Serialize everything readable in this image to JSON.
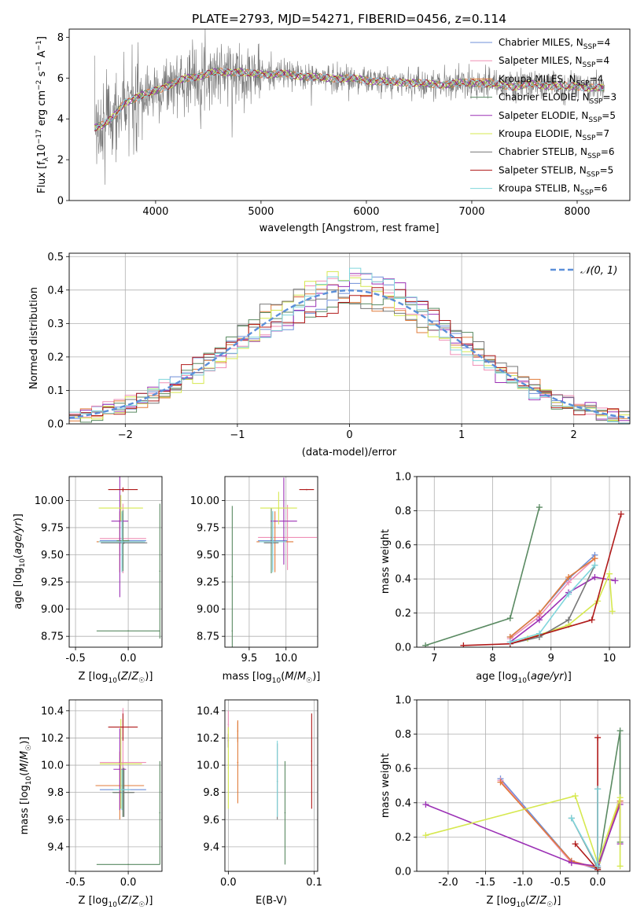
{
  "figure": {
    "title": "PLATE=2793, MJD=54271, FIBERID=0456, z=0.114"
  },
  "colors": {
    "Chabrier MILES": "#6f8fd8",
    "Salpeter MILES": "#ef8fb6",
    "Kroupa MILES": "#e07b3a",
    "Chabrier ELODIE": "#5a8a62",
    "Salpeter ELODIE": "#9b30b5",
    "Kroupa ELODIE": "#d6e84f",
    "Chabrier STELIB": "#777777",
    "Salpeter STELIB": "#b01a1a",
    "Kroupa STELIB": "#7fd6dc"
  },
  "chart_data": [
    {
      "type": "line",
      "title": "PLATE=2793, MJD=54271, FIBERID=0456, z=0.114",
      "xlabel": "wavelength [Angstrom, rest frame]",
      "ylabel": "Flux [f_λ10^-17 erg cm^-2 s^-1 A^-1]",
      "xlim": [
        3180,
        8500
      ],
      "ylim": [
        0,
        8.4
      ],
      "xticks": [
        4000,
        5000,
        6000,
        7000,
        8000
      ],
      "yticks": [
        0,
        2,
        4,
        6,
        8
      ],
      "grid": false,
      "legend": "right",
      "spectrum": {
        "name": "data",
        "x": [
          3420,
          3500,
          3560,
          3620,
          3700,
          3800,
          3900,
          4000,
          4100,
          4200,
          4300,
          4400,
          4500,
          4600,
          4700,
          4800,
          4900,
          5000,
          5200,
          5400,
          5600,
          5800,
          6000,
          6200,
          6400,
          6600,
          6800,
          7000,
          7200,
          7400,
          7600,
          7800,
          8000,
          8200,
          8260
        ],
        "y": [
          3.6,
          3.7,
          3.9,
          4.2,
          4.8,
          5.0,
          5.2,
          5.4,
          5.6,
          5.8,
          6.0,
          6.1,
          6.2,
          6.3,
          6.3,
          6.3,
          6.2,
          6.2,
          6.2,
          6.1,
          6.0,
          6.0,
          5.9,
          5.8,
          5.8,
          5.7,
          5.7,
          5.8,
          5.7,
          5.6,
          5.7,
          5.6,
          5.6,
          5.5,
          5.5
        ]
      },
      "series": [
        {
          "name": "Chabrier MILES",
          "label": "Chabrier MILES, N",
          "sub": "SSP",
          "suffix": "=4"
        },
        {
          "name": "Salpeter MILES",
          "label": "Salpeter MILES, N",
          "sub": "SSP",
          "suffix": "=4"
        },
        {
          "name": "Kroupa MILES",
          "label": "Kroupa MILES, N",
          "sub": "SSP",
          "suffix": "=4"
        },
        {
          "name": "Chabrier ELODIE",
          "label": "Chabrier ELODIE, N",
          "sub": "SSP",
          "suffix": "=3"
        },
        {
          "name": "Salpeter ELODIE",
          "label": "Salpeter ELODIE, N",
          "sub": "SSP",
          "suffix": "=5"
        },
        {
          "name": "Kroupa ELODIE",
          "label": "Kroupa ELODIE, N",
          "sub": "SSP",
          "suffix": "=7"
        },
        {
          "name": "Chabrier STELIB",
          "label": "Chabrier STELIB, N",
          "sub": "SSP",
          "suffix": "=6"
        },
        {
          "name": "Salpeter STELIB",
          "label": "Salpeter STELIB, N",
          "sub": "SSP",
          "suffix": "=5"
        },
        {
          "name": "Kroupa STELIB",
          "label": "Kroupa STELIB, N",
          "sub": "SSP",
          "suffix": "=6"
        }
      ]
    },
    {
      "type": "line",
      "xlabel": "(data-model)/error",
      "ylabel": "Normed distribution",
      "xlim": [
        -2.5,
        2.5
      ],
      "ylim": [
        0,
        0.51
      ],
      "xticks": [
        -2,
        -1,
        0,
        1,
        2
      ],
      "yticks": [
        0.0,
        0.1,
        0.2,
        0.3,
        0.4,
        0.5
      ],
      "grid": true,
      "legend": "top-right",
      "legend_entries": [
        "𝒩(0, 1)"
      ],
      "histogram_bins": [
        -2.5,
        2.5,
        50
      ],
      "normal_curve": {
        "mean": 0,
        "sigma": 1
      }
    },
    {
      "type": "scatter",
      "xlabel": "Z [log10(Z/Z☉)]",
      "ylabel": "age [log10(age/yr)]",
      "xlim": [
        -0.56,
        0.32
      ],
      "ylim": [
        8.65,
        10.22
      ],
      "xticks": [
        -0.5,
        0.0
      ],
      "yticks": [
        8.75,
        9.0,
        9.25,
        9.5,
        9.75,
        10.0
      ],
      "grid": true,
      "points": [
        {
          "series": "Chabrier MILES",
          "x": -0.05,
          "y": 9.63,
          "xerr": 0.22,
          "yerr": 0.25
        },
        {
          "series": "Salpeter MILES",
          "x": -0.05,
          "y": 9.65,
          "xerr": 0.22,
          "yerr": 0.32
        },
        {
          "series": "Kroupa MILES",
          "x": -0.08,
          "y": 9.62,
          "xerr": 0.22,
          "yerr": 0.28
        },
        {
          "series": "Chabrier ELODIE",
          "x": -0.05,
          "y": 9.63,
          "xerr": 0.06,
          "yerr": 0.28
        },
        {
          "series": "Salpeter ELODIE",
          "x": -0.08,
          "y": 9.81,
          "xerr": 0.08,
          "yerr": 0.7
        },
        {
          "series": "Kroupa ELODIE",
          "x": -0.07,
          "y": 9.93,
          "xerr": 0.21,
          "yerr": 0.12
        },
        {
          "series": "Chabrier STELIB",
          "x": -0.04,
          "y": 9.61,
          "xerr": 0.22,
          "yerr": 0.01
        },
        {
          "series": "Salpeter STELIB",
          "x": -0.05,
          "y": 10.1,
          "xerr": 0.14,
          "yerr": 0.02
        },
        {
          "series": "Kroupa STELIB",
          "x": -0.06,
          "y": 9.62,
          "xerr": 0.22,
          "yerr": 0.28
        },
        {
          "series": "Chabrier ELODIE",
          "x": 0.0,
          "y": 8.8,
          "xerr": 0.3,
          "yerr": 0.0
        },
        {
          "series": "Chabrier ELODIE",
          "x": 0.3,
          "y": 9.35,
          "xerr": 0.0,
          "yerr": 0.62
        }
      ]
    },
    {
      "type": "scatter",
      "xlabel": "mass [log10(M/M☉)]",
      "ylabel": "",
      "xlim": [
        9.17,
        10.43
      ],
      "ylim": [
        8.65,
        10.22
      ],
      "xticks": [
        9.5,
        10.0
      ],
      "yticks": [
        8.75,
        9.0,
        9.25,
        9.5,
        9.75,
        10.0
      ],
      "grid": true,
      "points": [
        {
          "series": "Chabrier MILES",
          "x": 9.82,
          "y": 9.63,
          "xerr": 0.2,
          "yerr": 0.27
        },
        {
          "series": "Salpeter MILES",
          "x": 10.02,
          "y": 9.66,
          "xerr": 0.4,
          "yerr": 0.3
        },
        {
          "series": "Kroupa MILES",
          "x": 9.85,
          "y": 9.62,
          "xerr": 0.25,
          "yerr": 0.28
        },
        {
          "series": "Chabrier ELODIE",
          "x": 9.8,
          "y": 9.63,
          "xerr": 0.0,
          "yerr": 0.3
        },
        {
          "series": "Salpeter ELODIE",
          "x": 9.97,
          "y": 9.81,
          "xerr": 0.18,
          "yerr": 0.4
        },
        {
          "series": "Kroupa ELODIE",
          "x": 9.9,
          "y": 9.93,
          "xerr": 0.25,
          "yerr": 0.15
        },
        {
          "series": "Chabrier STELIB",
          "x": 9.8,
          "y": 9.61,
          "xerr": 0.1,
          "yerr": 0.03
        },
        {
          "series": "Salpeter STELIB",
          "x": 10.28,
          "y": 10.1,
          "xerr": 0.1,
          "yerr": 0.0
        },
        {
          "series": "Kroupa STELIB",
          "x": 9.82,
          "y": 9.62,
          "xerr": 0.18,
          "yerr": 0.28
        },
        {
          "series": "Chabrier ELODIE",
          "x": 9.27,
          "y": 8.8,
          "xerr": 0.0,
          "yerr": 0.0
        },
        {
          "series": "Chabrier ELODIE",
          "x": 9.27,
          "y": 9.3,
          "xerr": 0.0,
          "yerr": 0.65
        }
      ]
    },
    {
      "type": "line",
      "xlabel": "age [log10(age/yr)]",
      "ylabel": "mass weight",
      "xlim": [
        6.7,
        10.35
      ],
      "ylim": [
        0,
        1.0
      ],
      "xticks": [
        7,
        8,
        9,
        10
      ],
      "yticks": [
        0.0,
        0.2,
        0.4,
        0.6,
        0.8,
        1.0
      ],
      "grid": true,
      "series": [
        {
          "name": "Chabrier MILES",
          "x": [
            8.3,
            8.8,
            9.3,
            9.75
          ],
          "y": [
            0.06,
            0.2,
            0.4,
            0.54
          ]
        },
        {
          "name": "Salpeter MILES",
          "x": [
            8.3,
            8.8,
            9.3,
            9.75
          ],
          "y": [
            0.05,
            0.18,
            0.38,
            0.52
          ]
        },
        {
          "name": "Kroupa MILES",
          "x": [
            8.3,
            8.8,
            9.3,
            9.75
          ],
          "y": [
            0.06,
            0.2,
            0.41,
            0.52
          ]
        },
        {
          "name": "Chabrier ELODIE",
          "x": [
            6.85,
            8.3,
            8.8
          ],
          "y": [
            0.01,
            0.17,
            0.82
          ]
        },
        {
          "name": "Salpeter ELODIE",
          "x": [
            8.3,
            8.8,
            9.3,
            9.75,
            10.1
          ],
          "y": [
            0.03,
            0.16,
            0.32,
            0.41,
            0.39
          ]
        },
        {
          "name": "Kroupa ELODIE",
          "x": [
            8.6,
            9.3,
            9.8,
            10.0,
            10.05
          ],
          "y": [
            0.05,
            0.13,
            0.27,
            0.43,
            0.21
          ]
        },
        {
          "name": "Chabrier STELIB",
          "x": [
            8.3,
            8.8,
            9.3,
            9.75
          ],
          "y": [
            0.02,
            0.06,
            0.16,
            0.48
          ]
        },
        {
          "name": "Salpeter STELIB",
          "x": [
            7.5,
            8.3,
            9.7,
            10.2
          ],
          "y": [
            0.01,
            0.02,
            0.16,
            0.78
          ]
        },
        {
          "name": "Kroupa STELIB",
          "x": [
            8.3,
            8.8,
            9.3,
            9.75
          ],
          "y": [
            0.03,
            0.08,
            0.31,
            0.48
          ]
        }
      ]
    },
    {
      "type": "scatter",
      "xlabel": "Z [log10(Z/Z☉)]",
      "ylabel": "mass [log10(M/M☉)]",
      "xlim": [
        -0.56,
        0.32
      ],
      "ylim": [
        9.22,
        10.48
      ],
      "xticks": [
        -0.5,
        0.0
      ],
      "yticks": [
        9.4,
        9.6,
        9.8,
        10.0,
        10.2,
        10.4
      ],
      "grid": true,
      "points": [
        {
          "series": "Chabrier MILES",
          "x": -0.05,
          "y": 9.82,
          "xerr": 0.22,
          "yerr": 0.2
        },
        {
          "series": "Salpeter MILES",
          "x": -0.05,
          "y": 10.02,
          "xerr": 0.22,
          "yerr": 0.4
        },
        {
          "series": "Kroupa MILES",
          "x": -0.08,
          "y": 9.85,
          "xerr": 0.23,
          "yerr": 0.25
        },
        {
          "series": "Chabrier ELODIE",
          "x": -0.05,
          "y": 9.8,
          "xerr": 0.1,
          "yerr": 0.18
        },
        {
          "series": "Salpeter ELODIE",
          "x": -0.08,
          "y": 9.97,
          "xerr": 0.06,
          "yerr": 0.3
        },
        {
          "series": "Kroupa ELODIE",
          "x": -0.07,
          "y": 10.01,
          "xerr": 0.2,
          "yerr": 0.33
        },
        {
          "series": "Chabrier STELIB",
          "x": -0.04,
          "y": 9.8,
          "xerr": 0.1,
          "yerr": 0.18
        },
        {
          "series": "Salpeter STELIB",
          "x": -0.05,
          "y": 10.28,
          "xerr": 0.14,
          "yerr": 0.1
        },
        {
          "series": "Kroupa STELIB",
          "x": -0.06,
          "y": 9.82,
          "xerr": 0.08,
          "yerr": 0.15
        },
        {
          "series": "Chabrier ELODIE",
          "x": 0.0,
          "y": 9.27,
          "xerr": 0.3,
          "yerr": 0.0
        },
        {
          "series": "Chabrier ELODIE",
          "x": 0.3,
          "y": 9.65,
          "xerr": 0.0,
          "yerr": 0.38
        }
      ]
    },
    {
      "type": "scatter",
      "xlabel": "E(B-V)",
      "ylabel": "",
      "xlim": [
        -0.004,
        0.104
      ],
      "ylim": [
        9.22,
        10.48
      ],
      "xticks": [
        0.0,
        0.1
      ],
      "yticks": [
        9.4,
        9.6,
        9.8,
        10.0,
        10.2,
        10.4
      ],
      "grid": true,
      "points": [
        {
          "series": "Chabrier MILES",
          "x": 0.0,
          "y": 10.18,
          "xerr": 0,
          "yerr": 0.05
        },
        {
          "series": "Salpeter MILES",
          "x": 0.0,
          "y": 10.3,
          "xerr": 0,
          "yerr": 0.1
        },
        {
          "series": "Kroupa MILES",
          "x": 0.011,
          "y": 10.02,
          "xerr": 0,
          "yerr": 0.3
        },
        {
          "series": "Chabrier ELODIE",
          "x": 0.066,
          "y": 9.65,
          "xerr": 0,
          "yerr": 0.38
        },
        {
          "series": "Salpeter ELODIE",
          "x": 0.0,
          "y": 10.18,
          "xerr": 0,
          "yerr": 0.05
        },
        {
          "series": "Kroupa ELODIE",
          "x": 0.0,
          "y": 9.98,
          "xerr": 0,
          "yerr": 0.3
        },
        {
          "series": "Chabrier STELIB",
          "x": 0.057,
          "y": 9.88,
          "xerr": 0,
          "yerr": 0.28
        },
        {
          "series": "Salpeter STELIB",
          "x": 0.097,
          "y": 10.03,
          "xerr": 0,
          "yerr": 0.35
        },
        {
          "series": "Kroupa STELIB",
          "x": 0.057,
          "y": 9.9,
          "xerr": 0,
          "yerr": 0.28
        },
        {
          "series": "Kroupa MILES",
          "x": 0.011,
          "y": 10.25,
          "xerr": 0,
          "yerr": 0.08
        }
      ]
    },
    {
      "type": "line",
      "xlabel": "Z [log10(Z/Z☉)]",
      "ylabel": "mass weight",
      "xlim": [
        -2.42,
        0.43
      ],
      "ylim": [
        0,
        1.0
      ],
      "xticks": [
        -2.0,
        -1.5,
        -1.0,
        -0.5,
        0.0
      ],
      "yticks": [
        0.0,
        0.2,
        0.4,
        0.6,
        0.8,
        1.0
      ],
      "grid": true,
      "series": [
        {
          "name": "Chabrier MILES",
          "x": [
            -1.3,
            -0.35,
            0.0,
            0.3
          ],
          "y": [
            0.54,
            0.06,
            0.01,
            0.41
          ]
        },
        {
          "name": "Salpeter MILES",
          "x": [
            -1.3,
            -0.35,
            0.0,
            0.3
          ],
          "y": [
            0.53,
            0.05,
            0.02,
            0.4
          ]
        },
        {
          "name": "Kroupa MILES",
          "x": [
            -1.3,
            -0.35,
            0.0,
            0.3
          ],
          "y": [
            0.52,
            0.06,
            0.02,
            0.41
          ]
        },
        {
          "name": "Chabrier ELODIE",
          "x": [
            0.0,
            0.3,
            0.3
          ],
          "y": [
            0.01,
            0.82,
            0.17
          ]
        },
        {
          "name": "Salpeter ELODIE",
          "x": [
            -2.3,
            -0.35,
            0.0,
            0.3,
            0.3
          ],
          "y": [
            0.39,
            0.05,
            0.03,
            0.39,
            0.16
          ]
        },
        {
          "name": "Kroupa ELODIE",
          "x": [
            -2.3,
            -0.3,
            0.0,
            0.3,
            0.3
          ],
          "y": [
            0.21,
            0.44,
            0.05,
            0.43,
            0.03
          ]
        },
        {
          "name": "Chabrier STELIB",
          "x": [
            -0.35,
            0.0,
            0.0
          ],
          "y": [
            0.31,
            0.02,
            0.48
          ]
        },
        {
          "name": "Salpeter STELIB",
          "x": [
            -0.3,
            0.0,
            0.0
          ],
          "y": [
            0.16,
            0.01,
            0.78
          ]
        },
        {
          "name": "Kroupa STELIB",
          "x": [
            -0.35,
            0.0,
            0.0
          ],
          "y": [
            0.31,
            0.03,
            0.48
          ]
        }
      ]
    }
  ]
}
